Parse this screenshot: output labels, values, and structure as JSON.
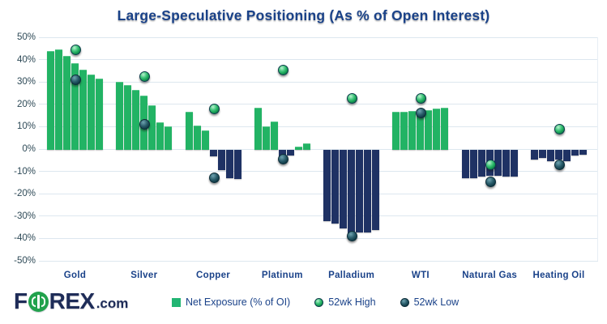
{
  "title": "Large-Speculative Positioning (As % of Open Interest)",
  "colors": {
    "bar_positive": "#22b364",
    "bar_negative": "#1f3264",
    "marker_high": "#1fa758",
    "marker_low": "#143f4c",
    "text_navy": "#1a4289",
    "ytick_text": "#2e4a57",
    "gridline": "#dde7ef"
  },
  "chart_data": {
    "type": "bar",
    "title": "Large-Speculative Positioning (As % of Open Interest)",
    "xlabel": "",
    "ylabel": "",
    "ylim": [
      -50,
      50
    ],
    "grid": "horizontal",
    "ytick_labels": [
      "50%",
      "40%",
      "30%",
      "20%",
      "10%",
      "0%",
      "-10%",
      "-20%",
      "-30%",
      "-40%",
      "-50%"
    ],
    "ytick_values": [
      50,
      40,
      30,
      20,
      10,
      0,
      -10,
      -20,
      -30,
      -40,
      -50
    ],
    "categories": [
      "Gold",
      "Silver",
      "Copper",
      "Platinum",
      "Palladium",
      "WTI",
      "Natural Gas",
      "Heating Oil"
    ],
    "bars_note": "7 net-exposure bars per category, green when positive, navy when negative",
    "groups": [
      {
        "label": "Gold",
        "bars": [
          44,
          44.5,
          41.5,
          38.5,
          35.5,
          33.5,
          31.5
        ],
        "high_52wk": 44.5,
        "low_52wk": 31
      },
      {
        "label": "Silver",
        "bars": [
          30,
          28.5,
          26.5,
          24,
          19.5,
          12,
          10
        ],
        "high_52wk": 32.5,
        "low_52wk": 11
      },
      {
        "label": "Copper",
        "bars": [
          16.5,
          10.5,
          8.5,
          -3,
          -9,
          -12.5,
          -13
        ],
        "high_52wk": 18,
        "low_52wk": -13
      },
      {
        "label": "Platinum",
        "bars": [
          18.5,
          10,
          12.5,
          -4,
          -2.5,
          1,
          2.5
        ],
        "high_52wk": 35.5,
        "low_52wk": -4.5
      },
      {
        "label": "Palladium",
        "bars": [
          -32,
          -33,
          -35,
          -37.5,
          -37,
          -37,
          -36
        ],
        "high_52wk": 22.5,
        "low_52wk": -39
      },
      {
        "label": "WTI",
        "bars": [
          16.5,
          16.5,
          17,
          17,
          17.5,
          18,
          18.5
        ],
        "high_52wk": 22.5,
        "low_52wk": 16
      },
      {
        "label": "Natural Gas",
        "bars": [
          -12.5,
          -12.5,
          -12,
          -11.5,
          -11.5,
          -12,
          -12
        ],
        "high_52wk": -7,
        "low_52wk": -14.5
      },
      {
        "label": "Heating Oil",
        "bars": [
          -4.5,
          -3.5,
          -5,
          -4.5,
          -5,
          -2.5,
          -2
        ],
        "high_52wk": 9,
        "low_52wk": -7
      }
    ],
    "legend": [
      {
        "label": "Net Exposure (% of OI)",
        "marker": "square",
        "color": "#22b364"
      },
      {
        "label": "52wk High",
        "marker": "sphere",
        "color": "#1fa758"
      },
      {
        "label": "52wk Low",
        "marker": "sphere",
        "color": "#143f4c"
      }
    ],
    "legend_position": "bottom-center"
  },
  "branding": {
    "logo_pre": "F",
    "logo_post": "REX",
    "logo_tld": ".com"
  }
}
